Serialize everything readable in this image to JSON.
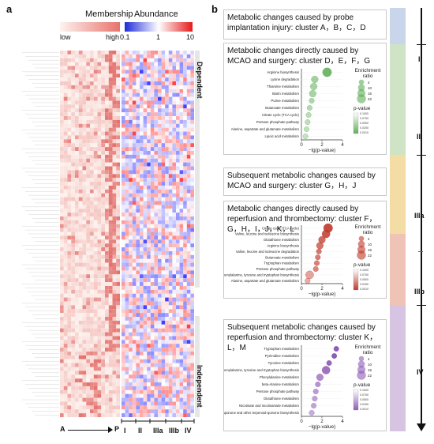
{
  "panel_a": {
    "letter": "a",
    "legend": {
      "membership_title": "Membership",
      "membership_low": "low",
      "membership_high": "high",
      "abundance_title": "Abundance",
      "abundance_ticks": [
        "0.1",
        "1",
        "10"
      ]
    },
    "right_labels": {
      "top": "Dependent",
      "bottom": "Independent"
    },
    "x_start": "A",
    "x_end": "P",
    "stage_columns": [
      "I",
      "II",
      "IIIa",
      "IIIb",
      "IV"
    ]
  },
  "panel_b": {
    "letter": "b",
    "box1": {
      "title": "Metabolic changes caused by probe implantation injury: cluster A，B，C，D"
    },
    "box2": {
      "title": "Metabolic changes directly caused by MCAO and surgery: cluster D，E，F，G"
    },
    "box3": {
      "title": "Subsequent metabolic changes caused by MCAO and surgery: cluster G，H，J"
    },
    "box4": {
      "title": "Metabolic changes directly caused by reperfusion and thrombectomy: cluster F，G，H，I，J，K，L"
    },
    "box5": {
      "title": "Subsequent metabolic changes caused by reperfusion and thrombectomy: cluster K，L，M"
    },
    "stages": [
      "I",
      "II",
      "IIIa",
      "IIIb",
      "IV"
    ]
  },
  "chart_data": [
    {
      "type": "heatmap",
      "title": "",
      "note": "Membership heatmap (clusters A to P) and abundance heatmap (stages I, II, IIIa, IIIb, IV); individual cell values not legible",
      "columns_membership": [
        "A",
        "P"
      ],
      "columns_abundance": [
        "I",
        "II",
        "IIIa",
        "IIIb",
        "IV"
      ],
      "colorbars": [
        {
          "name": "Membership",
          "labels": [
            "low",
            "high"
          ]
        },
        {
          "name": "Abundance",
          "ticks": [
            0.1,
            1,
            10
          ],
          "scale": "log"
        }
      ]
    },
    {
      "type": "scatter",
      "title": "",
      "xlabel": "−lg(p-value)",
      "xticks": [
        0,
        2,
        4
      ],
      "categories": [
        "Arginine biosynthesis",
        "Lysine degradation",
        "Thiamine metabolism",
        "Biotin metabolism",
        "Purine metabolism",
        "Butanoate metabolism",
        "Citrate cycle (TCA cycle)",
        "Pentose phosphate pathway",
        "Alanine, aspartate and glutamate metabolism",
        "Lipoic acid metabolism"
      ],
      "x": [
        2.5,
        1.3,
        1.2,
        1.1,
        1.0,
        0.8,
        0.7,
        0.6,
        0.5,
        0.4
      ],
      "enrichment_ratio": [
        22,
        10,
        10,
        10,
        4,
        4,
        4,
        4,
        4,
        4
      ],
      "size_legend_title": "Enrichment ratio",
      "size_legend": [
        4,
        10,
        16,
        22
      ],
      "color_legend_title": "p-value",
      "color_legend": [
        "0.1000",
        "0.0750",
        "0.0500",
        "0.0250",
        "0.0010"
      ],
      "color": "#5fae57"
    },
    {
      "type": "scatter",
      "title": "",
      "xlabel": "−lg(p-value)",
      "xticks": [
        0,
        2,
        4
      ],
      "categories": [
        "Citrate cycle (TCA cycle)",
        "Valine, leucine and isoleucine biosynthesis",
        "Glutathione metabolism",
        "Arginine biosynthesis",
        "Valine, leucine and isoleucine degradation",
        "Butanoate metabolism",
        "Tryptophan metabolism",
        "Pentose phosphate pathway",
        "Phenylalanine, tyrosine and tryptophan biosynthesis",
        "Alanine, aspartate and glutamate metabolism"
      ],
      "x": [
        2.6,
        2.4,
        2.0,
        1.8,
        1.7,
        1.6,
        1.5,
        1.4,
        0.8,
        0.6
      ],
      "enrichment_ratio": [
        22,
        16,
        10,
        10,
        4,
        4,
        4,
        4,
        16,
        4
      ],
      "size_legend_title": "Enrichment ratio",
      "size_legend": [
        4,
        10,
        16,
        22
      ],
      "color_legend_title": "p-value",
      "color_legend": [
        "0.1000",
        "0.0750",
        "0.0500",
        "0.0250",
        "0.0010"
      ],
      "color": "#c0392b"
    },
    {
      "type": "scatter",
      "title": "",
      "xlabel": "−lg(p-value)",
      "xticks": [
        0,
        2,
        4
      ],
      "categories": [
        "Tryptophan metabolism",
        "Pyrimidine metabolism",
        "Tyrosine metabolism",
        "Phenylalanine, tyrosine and tryptophan biosynthesis",
        "Phenylalanine metabolism",
        "beta-Alanine metabolism",
        "Pentose phosphate pathway",
        "Glutathione metabolism",
        "Nicotinate and nicotinamide metabolism",
        "Ubiquinone and other terpenoid-quinone biosynthesis"
      ],
      "x": [
        3.4,
        3.2,
        2.7,
        2.4,
        1.8,
        1.6,
        1.4,
        1.3,
        1.2,
        1.0
      ],
      "enrichment_ratio": [
        4,
        4,
        4,
        16,
        10,
        4,
        4,
        4,
        4,
        4
      ],
      "size_legend_title": "Enrichment ratio",
      "size_legend": [
        4,
        10,
        16,
        22
      ],
      "color_legend_title": "p-value",
      "color_legend": [
        "0.1000",
        "0.0750",
        "0.0500",
        "0.0250",
        "0.0010"
      ],
      "color": "#8e5bb5"
    }
  ]
}
